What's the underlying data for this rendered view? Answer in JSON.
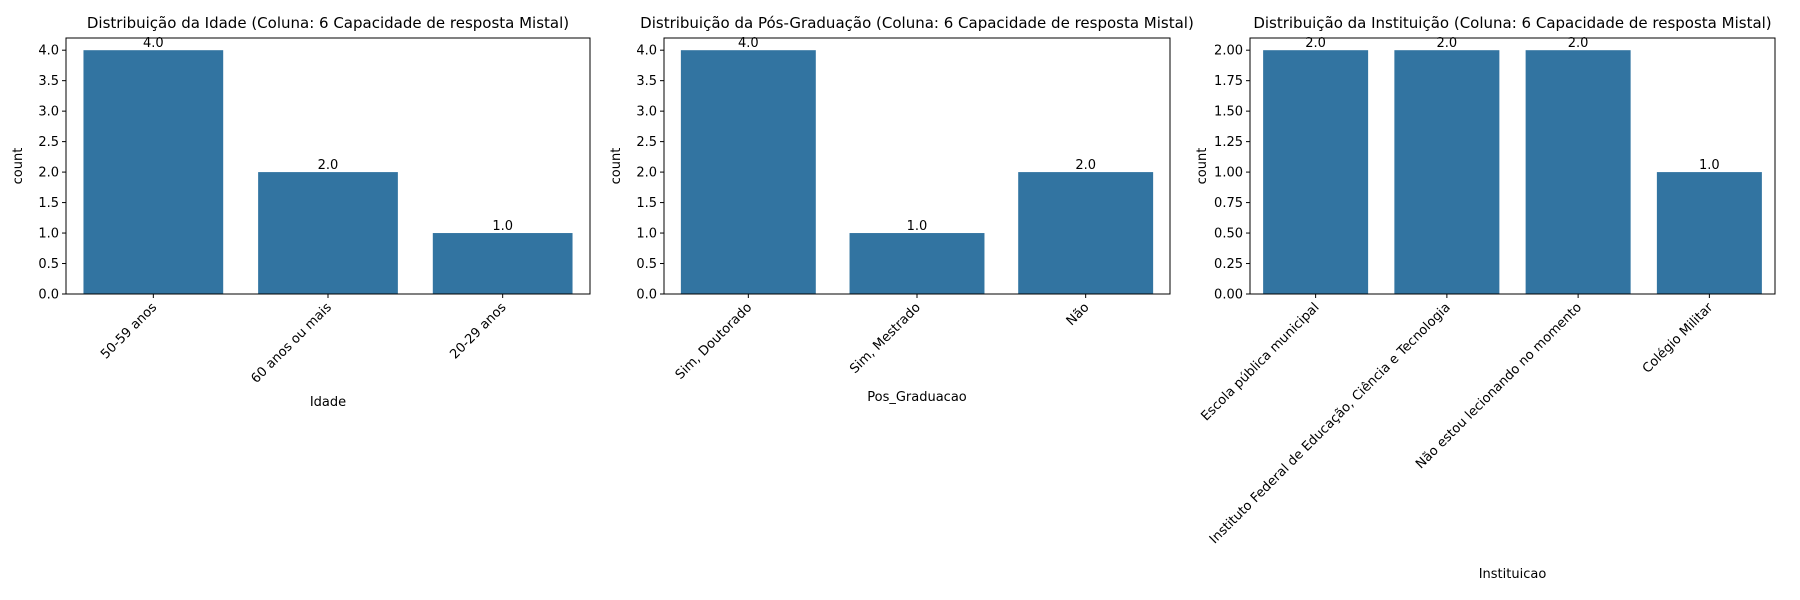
{
  "chart_data": [
    {
      "type": "bar",
      "title": "Distribuição da Idade (Coluna: 6 Capacidade de resposta Mistal)",
      "xlabel": "Idade",
      "ylabel": "count",
      "categories": [
        "50-59 anos",
        "60 anos ou mais",
        "20-29 anos"
      ],
      "values": [
        4,
        2,
        1
      ],
      "value_labels": [
        "4.0",
        "2.0",
        "1.0"
      ],
      "ylim": [
        0,
        4.2
      ],
      "yticks": [
        "0.0",
        "0.5",
        "1.0",
        "1.5",
        "2.0",
        "2.5",
        "3.0",
        "3.5",
        "4.0"
      ],
      "color": "#3274a1"
    },
    {
      "type": "bar",
      "title": "Distribuição da Pós-Graduação (Coluna: 6 Capacidade de resposta Mistal)",
      "xlabel": "Pos_Graduacao",
      "ylabel": "count",
      "categories": [
        "Sim, Doutorado",
        "Sim, Mestrado",
        "Não"
      ],
      "values": [
        4,
        1,
        2
      ],
      "value_labels": [
        "4.0",
        "1.0",
        "2.0"
      ],
      "ylim": [
        0,
        4.2
      ],
      "yticks": [
        "0.0",
        "0.5",
        "1.0",
        "1.5",
        "2.0",
        "2.5",
        "3.0",
        "3.5",
        "4.0"
      ],
      "color": "#3274a1"
    },
    {
      "type": "bar",
      "title": "Distribuição da Instituição (Coluna: 6 Capacidade de resposta Mistal)",
      "xlabel": "Instituicao",
      "ylabel": "count",
      "categories": [
        "Escola pública municipal",
        "Instituto Federal de Educação, Ciência e Tecnologia",
        "Não estou lecionando no momento",
        "Colégio Militar"
      ],
      "values": [
        2,
        2,
        2,
        1
      ],
      "value_labels": [
        "2.0",
        "2.0",
        "2.0",
        "1.0"
      ],
      "ylim": [
        0,
        2.1
      ],
      "yticks": [
        "0.00",
        "0.25",
        "0.50",
        "0.75",
        "1.00",
        "1.25",
        "1.50",
        "1.75",
        "2.00"
      ],
      "color": "#3274a1"
    }
  ]
}
